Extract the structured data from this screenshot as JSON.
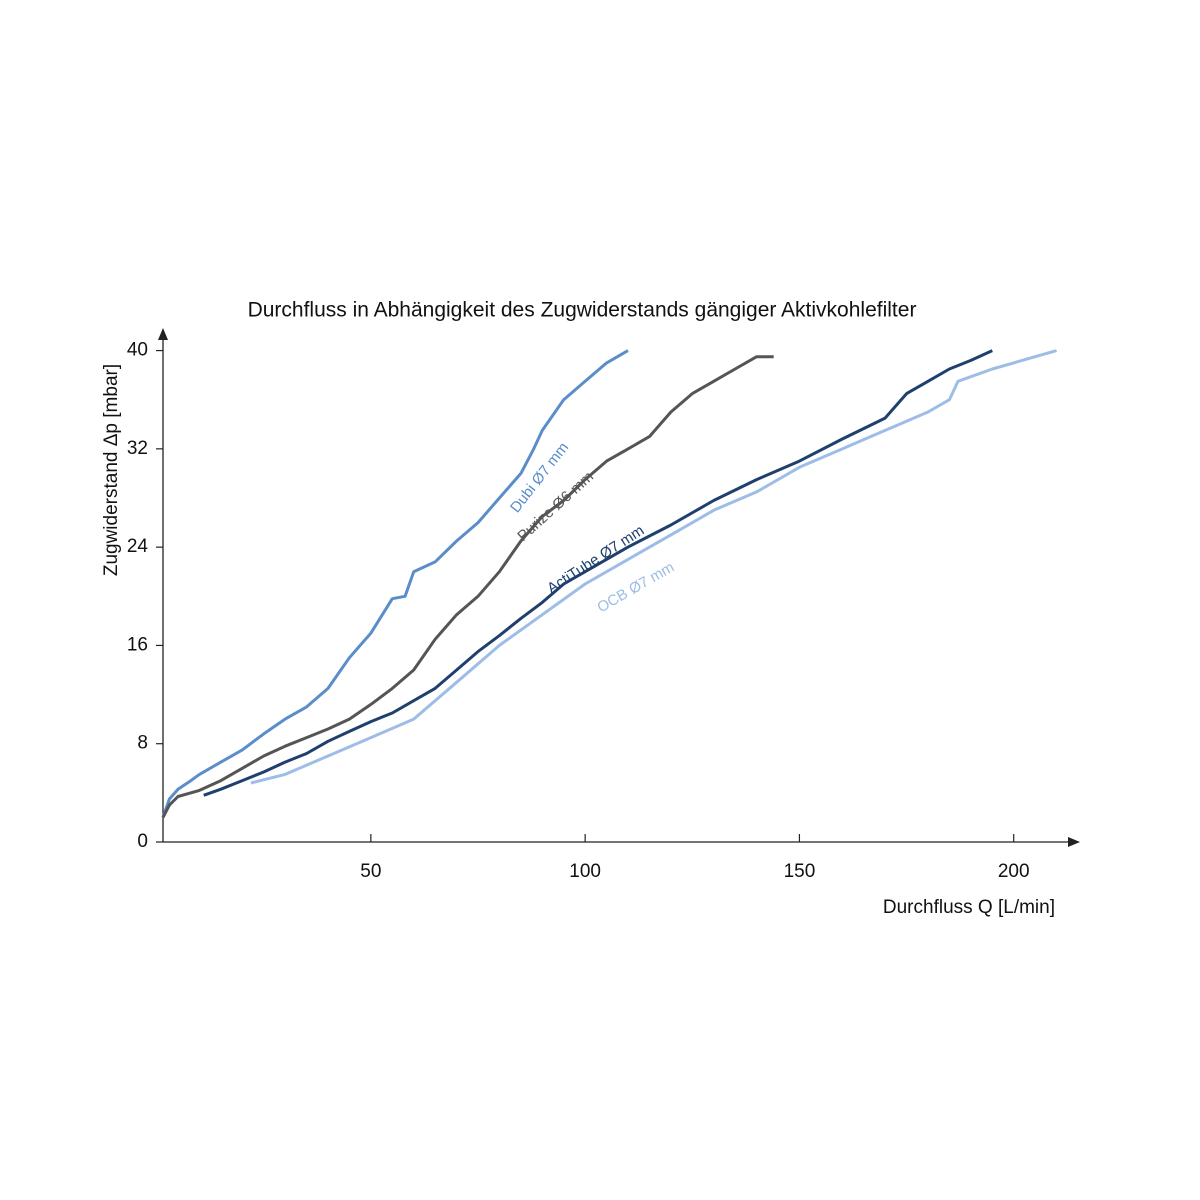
{
  "chart_data": {
    "type": "line",
    "title": "Durchfluss in Abhängigkeit des Zugwiderstands gängiger Aktivkohlefilter",
    "x_label": "Durchfluss Q [L/min]",
    "y_label": "Zugwiderstand Δp [mbar]",
    "xlim": [
      1.5,
      215
    ],
    "ylim": [
      0,
      42
    ],
    "xticks": [
      50,
      100,
      150,
      200
    ],
    "yticks": [
      0,
      8,
      16,
      24,
      32,
      40
    ],
    "grid": false,
    "series": [
      {
        "name": "Dubi Ø7 mm",
        "color": "#5b8dc9",
        "x": [
          1.5,
          3,
          5,
          8,
          10,
          15,
          20,
          25,
          30,
          35,
          40,
          45,
          50,
          55,
          58,
          60,
          65,
          70,
          75,
          80,
          85,
          88,
          90,
          95,
          100,
          105,
          110
        ],
        "values": [
          2,
          3.5,
          4.3,
          5,
          5.5,
          6.5,
          7.5,
          8.8,
          10,
          11,
          12.5,
          15,
          17,
          19.8,
          20,
          22,
          22.8,
          24.5,
          26,
          28,
          30,
          32,
          33.5,
          36,
          37.5,
          39,
          40
        ]
      },
      {
        "name": "Purize Ø6 mm",
        "color": "#555555",
        "x": [
          1.5,
          3,
          5,
          10,
          15,
          20,
          25,
          30,
          35,
          40,
          45,
          50,
          55,
          60,
          65,
          70,
          75,
          80,
          85,
          90,
          95,
          100,
          105,
          110,
          115,
          120,
          125,
          130,
          135,
          140,
          144
        ],
        "values": [
          2,
          3,
          3.7,
          4.2,
          5,
          6,
          7,
          7.8,
          8.5,
          9.2,
          10,
          11.2,
          12.5,
          14,
          16.5,
          18.5,
          20,
          22,
          24.5,
          26.5,
          27.8,
          29.5,
          31,
          32,
          33,
          35,
          36.5,
          37.5,
          38.5,
          39.5,
          39.5
        ]
      },
      {
        "name": "ActiTube Ø7 mm",
        "color": "#1f3f6e",
        "x": [
          11,
          15,
          20,
          25,
          30,
          35,
          40,
          45,
          50,
          55,
          60,
          65,
          70,
          75,
          80,
          85,
          90,
          95,
          100,
          110,
          120,
          130,
          140,
          150,
          160,
          170,
          175,
          180,
          185,
          190,
          195
        ],
        "values": [
          3.8,
          4.3,
          5,
          5.7,
          6.5,
          7.2,
          8.2,
          9,
          9.8,
          10.5,
          11.5,
          12.5,
          14,
          15.5,
          16.8,
          18.2,
          19.5,
          21,
          22,
          24,
          25.8,
          27.8,
          29.5,
          31,
          32.8,
          34.5,
          36.5,
          37.5,
          38.5,
          39.2,
          40
        ]
      },
      {
        "name": "OCB Ø7 mm",
        "color": "#9dbde6",
        "x": [
          22,
          30,
          40,
          50,
          60,
          70,
          80,
          90,
          100,
          110,
          120,
          130,
          140,
          150,
          160,
          170,
          180,
          185,
          187,
          195,
          200,
          205,
          210
        ],
        "values": [
          4.8,
          5.5,
          7,
          8.5,
          10,
          13,
          16,
          18.5,
          21,
          23,
          25,
          27,
          28.5,
          30.5,
          32,
          33.5,
          35,
          36,
          37.5,
          38.5,
          39,
          39.5,
          40
        ]
      }
    ]
  }
}
